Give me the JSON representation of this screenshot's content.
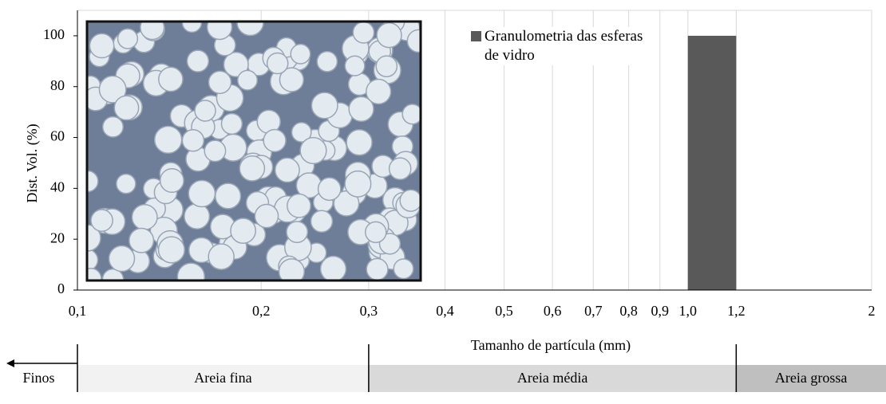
{
  "chart_data": {
    "type": "histogram",
    "x_label": "Tamanho de partícula (mm)",
    "y_label": "Dist. Vol. (%)",
    "bins": [
      1.0,
      1.2
    ],
    "series": [
      {
        "name": "Granulometria das esferas de vidro",
        "color": "#595959",
        "values": [
          100
        ]
      }
    ],
    "xlim": [
      0.1,
      2
    ],
    "x_log": true,
    "xticks": [
      {
        "value": 0.1,
        "label": "0,1"
      },
      {
        "value": 0.2,
        "label": "0,2"
      },
      {
        "value": 0.3,
        "label": "0,3"
      },
      {
        "value": 0.4,
        "label": "0,4"
      },
      {
        "value": 0.5,
        "label": "0,5"
      },
      {
        "value": 0.6,
        "label": "0,6"
      },
      {
        "value": 0.7,
        "label": "0,7"
      },
      {
        "value": 0.8,
        "label": "0,8"
      },
      {
        "value": 0.9,
        "label": "0,9"
      },
      {
        "value": 1.0,
        "label": "1,0"
      },
      {
        "value": 1.2,
        "label": "1,2"
      },
      2
    ],
    "ylim": [
      0,
      110
    ],
    "yticks": [
      0,
      20,
      40,
      60,
      80,
      100
    ],
    "grid": true,
    "zone_bounds": [
      0.1,
      0.3,
      1.2
    ],
    "zone_labels": [
      "Finos",
      "Areia fina",
      "Areia média",
      "Areia grossa"
    ]
  }
}
